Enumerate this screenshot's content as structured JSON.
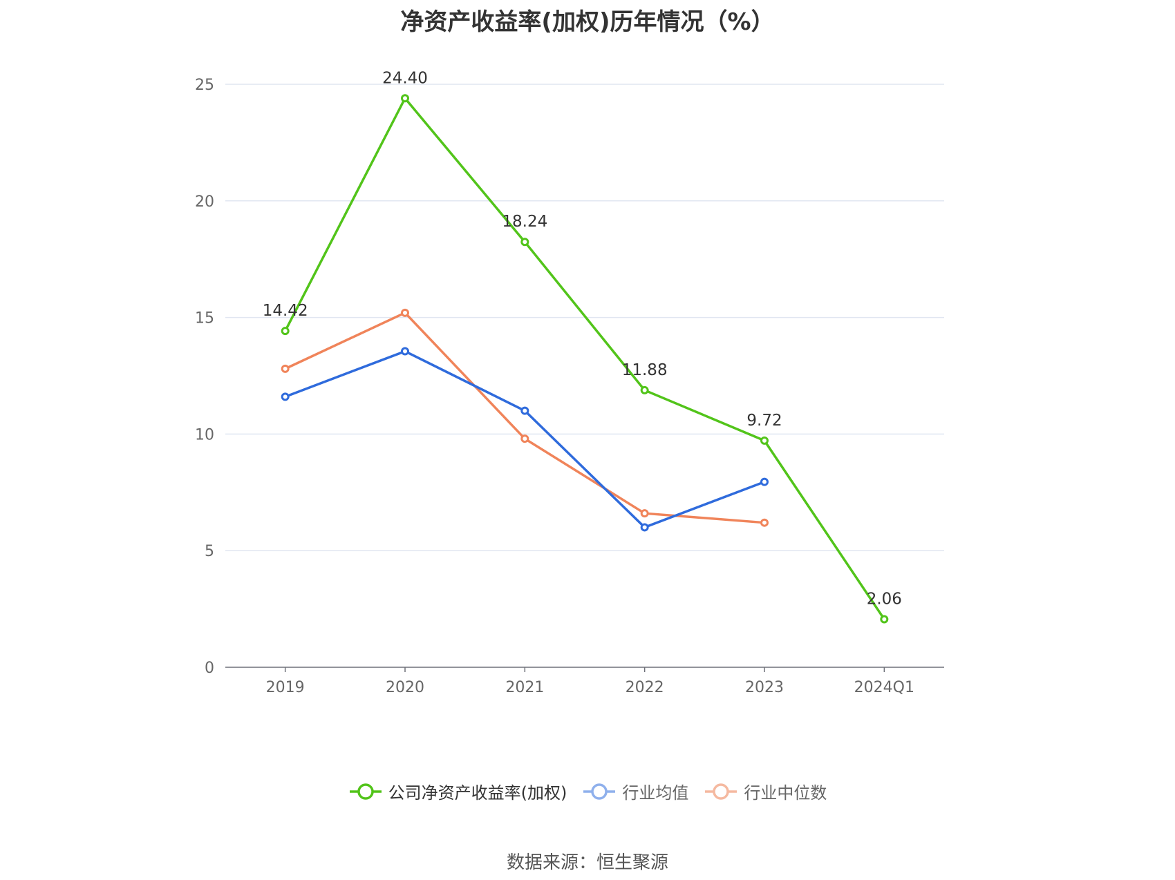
{
  "chart_data": {
    "type": "line",
    "title": "净资产收益率(加权)历年情况（%）",
    "categories": [
      "2019",
      "2020",
      "2021",
      "2022",
      "2023",
      "2024Q1"
    ],
    "ylim": [
      0,
      25
    ],
    "yticks": [
      0,
      5,
      10,
      15,
      20,
      25
    ],
    "grid": true,
    "legend_position": "bottom",
    "series": [
      {
        "name": "公司净资产收益率(加权)",
        "color": "#52c41a",
        "values": [
          14.42,
          24.4,
          18.24,
          11.88,
          9.72,
          2.06
        ],
        "labels": [
          "14.42",
          "24.40",
          "18.24",
          "11.88",
          "9.72",
          "2.06"
        ]
      },
      {
        "name": "行业均值",
        "color": "#2f6bdc",
        "legend_color": "#8fb0ec",
        "values": [
          11.6,
          13.55,
          11.0,
          6.0,
          7.95,
          null
        ]
      },
      {
        "name": "行业中位数",
        "color": "#f0845a",
        "legend_color": "#f5b9a0",
        "values": [
          12.8,
          15.2,
          9.8,
          6.6,
          6.2,
          null
        ]
      }
    ]
  },
  "source": "数据来源：恒生聚源"
}
